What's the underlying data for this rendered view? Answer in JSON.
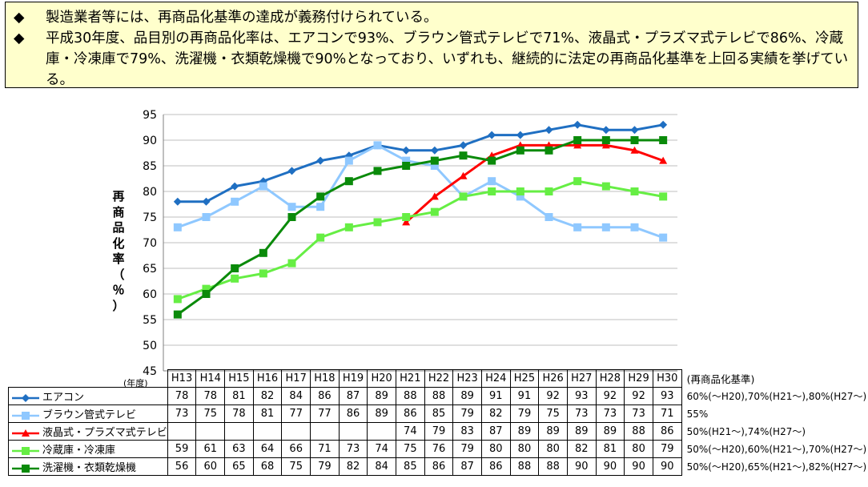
{
  "note": {
    "bullet": "◆",
    "lines": [
      "製造業者等には、再商品化基準の達成が義務付けられている。",
      "平成30年度、品目別の再商品化率は、エアコンで93%、ブラウン管式テレビで71%、液晶式・プラズマ式テレビで86%、冷蔵庫・冷凍庫で79%、洗濯機・衣類乾燥機で90%となっており、いずれも、継続的に法定の再商品化基準を上回る実績を挙げている。"
    ]
  },
  "table": {
    "year_unit": "(年度)",
    "standard_header": "(再商品化基準)"
  },
  "chart_data": {
    "type": "line",
    "ylabel": "再商品化率（％）",
    "ylim": [
      45,
      95
    ],
    "yticks": [
      45,
      50,
      55,
      60,
      65,
      70,
      75,
      80,
      85,
      90,
      95
    ],
    "grid": true,
    "categories": [
      "H13",
      "H14",
      "H15",
      "H16",
      "H17",
      "H18",
      "H19",
      "H20",
      "H21",
      "H22",
      "H23",
      "H24",
      "H25",
      "H26",
      "H27",
      "H28",
      "H29",
      "H30"
    ],
    "series": [
      {
        "name": "エアコン",
        "color": "#1f6fc2",
        "marker": "diamond",
        "values": [
          78,
          78,
          81,
          82,
          84,
          86,
          87,
          89,
          88,
          88,
          89,
          91,
          91,
          92,
          93,
          92,
          92,
          93
        ],
        "standard": "60%(～H20),70%(H21～),80%(H27～)"
      },
      {
        "name": "ブラウン管式テレビ",
        "color": "#8fc8ff",
        "marker": "square",
        "values": [
          73,
          75,
          78,
          81,
          77,
          77,
          86,
          89,
          86,
          85,
          79,
          82,
          79,
          75,
          73,
          73,
          73,
          71
        ],
        "standard": "55%"
      },
      {
        "name": "液晶式・プラズマ式テレビ",
        "color": "#ff0000",
        "marker": "triangle",
        "values": [
          null,
          null,
          null,
          null,
          null,
          null,
          null,
          null,
          74,
          79,
          83,
          87,
          89,
          89,
          89,
          89,
          88,
          86
        ],
        "standard": "50%(H21～),74%(H27～)"
      },
      {
        "name": "冷蔵庫・冷凍庫",
        "color": "#66ee44",
        "marker": "square",
        "values": [
          59,
          61,
          63,
          64,
          66,
          71,
          73,
          74,
          75,
          76,
          79,
          80,
          80,
          80,
          82,
          81,
          80,
          79
        ],
        "standard": "50%(～H20),60%(H21～),70%(H27～)"
      },
      {
        "name": "洗濯機・衣類乾燥機",
        "color": "#0a8a0a",
        "marker": "square",
        "values": [
          56,
          60,
          65,
          68,
          75,
          79,
          82,
          84,
          85,
          86,
          87,
          86,
          88,
          88,
          90,
          90,
          90,
          90
        ],
        "standard": "50%(～H20),65%(H21～),82%(H27～)"
      }
    ]
  }
}
